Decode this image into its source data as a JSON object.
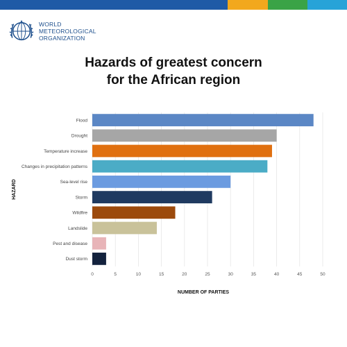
{
  "brand": {
    "colors": [
      "#1f5aa6",
      "#f2a81d",
      "#3aa346",
      "#27a3d8"
    ],
    "logo_lines": [
      "WORLD",
      "METEOROLOGICAL",
      "ORGANIZATION"
    ],
    "emblem_icon": "wmo-emblem-icon"
  },
  "title_lines": [
    "Hazards of greatest concern",
    "for the African region"
  ],
  "chart_data": {
    "type": "bar",
    "orientation": "horizontal",
    "categories": [
      "Flood",
      "Drought",
      "Temperature increase",
      "Changes in precipitation patterns",
      "Sea-level rise",
      "Storm",
      "Wildfire",
      "Landslide",
      "Pest and disease",
      "Dust storm"
    ],
    "values": [
      48,
      40,
      39,
      38,
      30,
      26,
      18,
      14,
      3,
      3
    ],
    "colors": [
      "#5b87c5",
      "#a6a6a6",
      "#e07010",
      "#4bacc6",
      "#6b9be0",
      "#1f3a60",
      "#9c4a0c",
      "#c9c29a",
      "#e8b4b8",
      "#13223d"
    ],
    "xlabel": "NUMBER OF PARTIES",
    "ylabel": "HAZARD",
    "xlim": [
      0,
      50
    ],
    "xticks": [
      0,
      5,
      10,
      15,
      20,
      25,
      30,
      35,
      40,
      45,
      50
    ],
    "grid": true,
    "legend": "none"
  }
}
